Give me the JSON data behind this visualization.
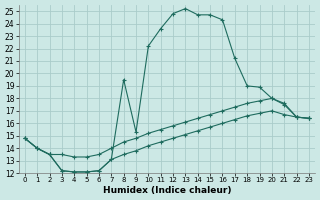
{
  "xlabel": "Humidex (Indice chaleur)",
  "bg_color": "#cce8e5",
  "grid_color": "#aaccca",
  "line_color": "#1e6b5e",
  "xlim": [
    -0.5,
    23.5
  ],
  "ylim": [
    12,
    25.5
  ],
  "xticks": [
    0,
    1,
    2,
    3,
    4,
    5,
    6,
    7,
    8,
    9,
    10,
    11,
    12,
    13,
    14,
    15,
    16,
    17,
    18,
    19,
    20,
    21,
    22,
    23
  ],
  "yticks": [
    12,
    13,
    14,
    15,
    16,
    17,
    18,
    19,
    20,
    21,
    22,
    23,
    24,
    25
  ],
  "line1_x": [
    0,
    1,
    2,
    3,
    4,
    5,
    6,
    7,
    8,
    9,
    10,
    11,
    12,
    13,
    14,
    15,
    16,
    17,
    18,
    19,
    20,
    21,
    22,
    23
  ],
  "line1_y": [
    14.8,
    14.0,
    13.5,
    12.2,
    12.1,
    12.1,
    12.2,
    13.1,
    19.5,
    15.3,
    22.2,
    23.6,
    24.8,
    25.2,
    24.7,
    24.7,
    24.3,
    21.2,
    19.0,
    18.9,
    18.0,
    17.5,
    16.5,
    16.4
  ],
  "line2_x": [
    0,
    1,
    2,
    3,
    4,
    5,
    6,
    7,
    8,
    9,
    10,
    11,
    12,
    13,
    14,
    15,
    16,
    17,
    18,
    19,
    20,
    21,
    22,
    23
  ],
  "line2_y": [
    14.8,
    14.0,
    13.5,
    13.5,
    13.3,
    13.3,
    13.5,
    14.0,
    14.5,
    14.8,
    15.2,
    15.5,
    15.8,
    16.1,
    16.4,
    16.7,
    17.0,
    17.3,
    17.6,
    17.8,
    18.0,
    17.6,
    16.5,
    16.4
  ],
  "line3_x": [
    0,
    1,
    2,
    3,
    4,
    5,
    6,
    7,
    8,
    9,
    10,
    11,
    12,
    13,
    14,
    15,
    16,
    17,
    18,
    19,
    20,
    21,
    22,
    23
  ],
  "line3_y": [
    14.8,
    14.0,
    13.5,
    12.2,
    12.1,
    12.1,
    12.2,
    13.1,
    13.5,
    13.8,
    14.2,
    14.5,
    14.8,
    15.1,
    15.4,
    15.7,
    16.0,
    16.3,
    16.6,
    16.8,
    17.0,
    16.7,
    16.5,
    16.4
  ]
}
